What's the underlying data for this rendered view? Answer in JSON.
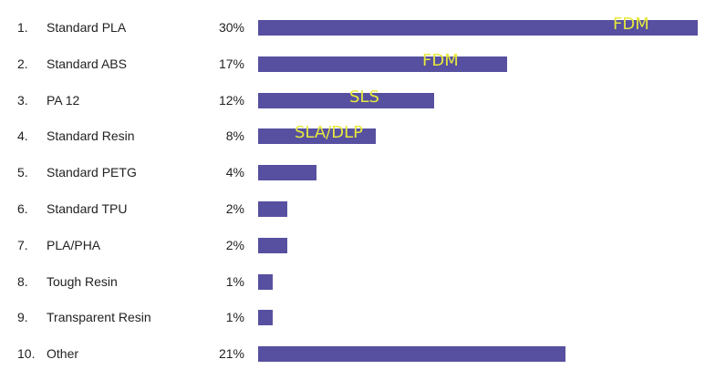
{
  "chart_data": {
    "type": "bar",
    "orientation": "horizontal",
    "bar_color": "#5750a0",
    "label_color": "#e6e93c",
    "rows": [
      {
        "rank": "1.",
        "category": "Standard PLA",
        "value": 30,
        "value_label": "30%",
        "bar_label": "FDM"
      },
      {
        "rank": "2.",
        "category": "Standard ABS",
        "value": 17,
        "value_label": "17%",
        "bar_label": "FDM"
      },
      {
        "rank": "3.",
        "category": "PA 12",
        "value": 12,
        "value_label": "12%",
        "bar_label": "SLS"
      },
      {
        "rank": "4.",
        "category": "Standard Resin",
        "value": 8,
        "value_label": "8%",
        "bar_label": "SLA/DLP"
      },
      {
        "rank": "5.",
        "category": "Standard PETG",
        "value": 4,
        "value_label": "4%",
        "bar_label": ""
      },
      {
        "rank": "6.",
        "category": "Standard TPU",
        "value": 2,
        "value_label": "2%",
        "bar_label": ""
      },
      {
        "rank": "7.",
        "category": "PLA/PHA",
        "value": 2,
        "value_label": "2%",
        "bar_label": ""
      },
      {
        "rank": "8.",
        "category": "Tough Resin",
        "value": 1,
        "value_label": "1%",
        "bar_label": ""
      },
      {
        "rank": "9.",
        "category": "Transparent Resin",
        "value": 1,
        "value_label": "1%",
        "bar_label": ""
      },
      {
        "rank": "10.",
        "category": "Other",
        "value": 21,
        "value_label": "21%",
        "bar_label": ""
      }
    ],
    "xlim": [
      0,
      30
    ]
  }
}
